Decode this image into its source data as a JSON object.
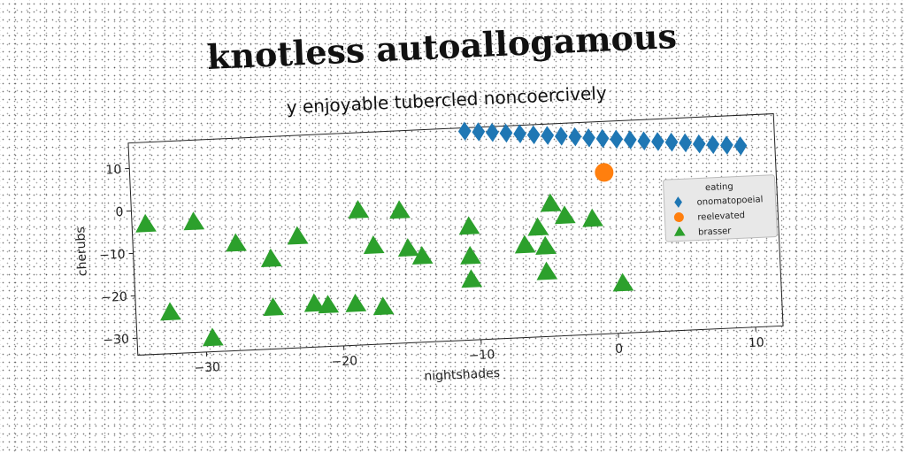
{
  "chart_data": {
    "type": "scatter",
    "title": "knotless autoallogamous",
    "subtitle": "y enjoyable tubercled noncoercively",
    "xlabel": "nightshades",
    "ylabel": "cherubs",
    "xlim": [
      -35,
      12
    ],
    "ylim": [
      -34,
      16
    ],
    "x_ticks": [
      -30,
      -20,
      -10,
      0,
      10
    ],
    "y_ticks": [
      10,
      0,
      -10,
      -20,
      -30
    ],
    "x_tick_labels": [
      "−30",
      "−20",
      "−10",
      "0",
      "10"
    ],
    "y_tick_labels": [
      "10",
      "0",
      "−10",
      "−20",
      "−30"
    ],
    "grid": false,
    "legend": {
      "title": "eating",
      "placement": "right"
    },
    "series": [
      {
        "name": "onomatopoeial",
        "marker": "diamond",
        "color": "#1f77b4",
        "x": [
          -10.5,
          -9.5,
          -8.5,
          -7.5,
          -6.5,
          -5.5,
          -4.5,
          -3.5,
          -2.5,
          -1.5,
          -0.5,
          0.5,
          1.5,
          2.5,
          3.5,
          4.5,
          5.5,
          6.5,
          7.5,
          8.5,
          9.5
        ],
        "y": [
          15.2,
          14.9,
          14.6,
          14.3,
          14.0,
          13.6,
          13.3,
          13.0,
          12.7,
          12.3,
          12.0,
          11.7,
          11.4,
          11.0,
          10.7,
          10.4,
          10.1,
          9.7,
          9.4,
          9.1,
          8.8
        ]
      },
      {
        "name": "reelevated",
        "marker": "circle",
        "color": "#ff7f0e",
        "x": [
          -0.5
        ],
        "y": [
          4.0
        ]
      },
      {
        "name": "brasser",
        "marker": "triangle",
        "color": "#2ca02c",
        "x": [
          -34,
          -30.5,
          -27.5,
          -25,
          -23,
          -18.5,
          -15.5,
          -17.5,
          -15,
          -14,
          -10.5,
          -10.5,
          -10.5,
          -6.5,
          -5.5,
          -5,
          -5,
          -4.5,
          -3.5,
          -1.5,
          0.5,
          -32.5,
          -25,
          -22,
          -21,
          -19,
          -17,
          -29.5,
          -5
        ],
        "y": [
          -3.5,
          -3.5,
          -9,
          -13,
          -8,
          -2.5,
          -3,
          -11,
          -12,
          -14,
          -7.5,
          -14.5,
          -20,
          -12.5,
          -8.5,
          -13,
          -19,
          -3,
          -6,
          -7,
          -22.5,
          -24.5,
          -24.5,
          -24,
          -24.5,
          -24.5,
          -25.5,
          -31,
          -13
        ]
      }
    ]
  }
}
